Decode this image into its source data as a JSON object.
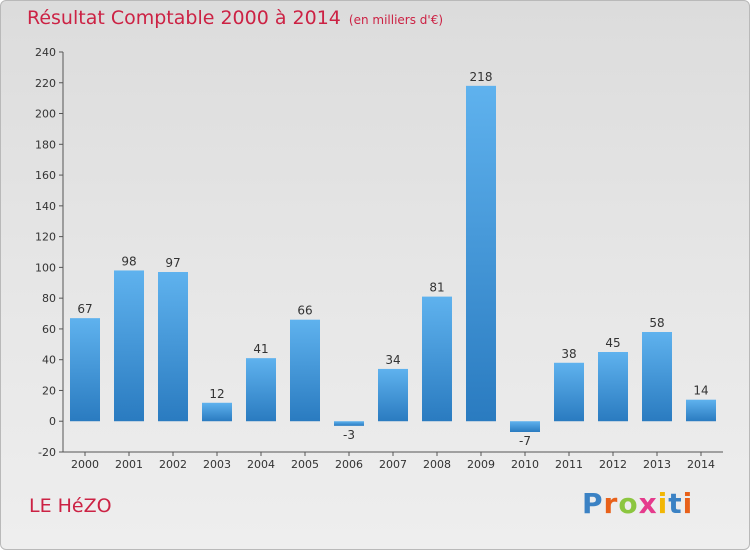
{
  "header": {
    "title": "Résultat Comptable 2000 à 2014",
    "subtitle": "(en milliers d'€)"
  },
  "footer": {
    "commune": "LE HéZO",
    "logo_text": "Proxiti",
    "logo_colors": [
      "#3b82c4",
      "#e8611a",
      "#8cc63f",
      "#e53a8c",
      "#f2b705",
      "#3b82c4",
      "#e8611a"
    ]
  },
  "colors": {
    "title": "#cc2244",
    "bar_light": "#5fb2ee",
    "bar_dark": "#2a7bc0"
  },
  "chart_data": {
    "type": "bar",
    "categories": [
      "2000",
      "2001",
      "2002",
      "2003",
      "2004",
      "2005",
      "2006",
      "2007",
      "2008",
      "2009",
      "2010",
      "2011",
      "2012",
      "2013",
      "2014"
    ],
    "values": [
      67,
      98,
      97,
      12,
      41,
      66,
      -3,
      34,
      81,
      218,
      -7,
      38,
      45,
      58,
      14
    ],
    "title": "Résultat Comptable 2000 à 2014",
    "subtitle": "(en milliers d'€)",
    "ylim": [
      -20,
      240
    ],
    "yticks": [
      -20,
      0,
      20,
      40,
      60,
      80,
      100,
      120,
      140,
      160,
      180,
      200,
      220,
      240
    ],
    "grid": false,
    "data_labels": true
  }
}
